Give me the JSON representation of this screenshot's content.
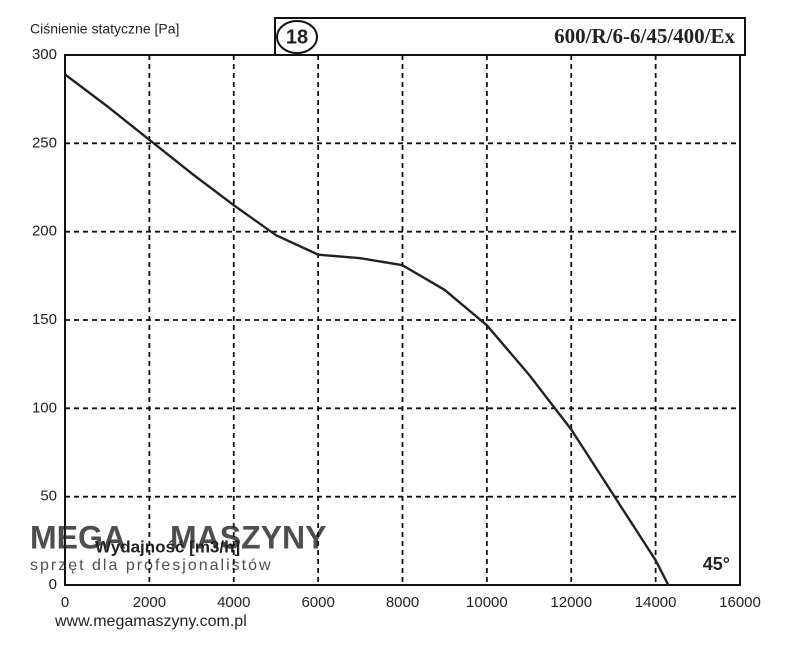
{
  "chart_data": {
    "type": "line",
    "title": "600/R/6-6/45/400/Ex",
    "badge": "18",
    "y_label": "Ciśnienie statyczne [Pa]",
    "x_label": "Wydajność [m3/h]",
    "annotation": "45°",
    "x": [
      0,
      1000,
      2000,
      3000,
      4000,
      5000,
      6000,
      7000,
      8000,
      9000,
      10000,
      11000,
      12000,
      13000,
      14000,
      14300
    ],
    "series": [
      {
        "name": "600/R/6-6/45/400/Ex",
        "color": "#222222",
        "values": [
          289,
          271,
          252,
          233,
          215,
          198,
          187,
          185,
          181,
          167,
          147,
          119,
          88,
          51,
          14,
          0
        ]
      }
    ],
    "xlim": [
      0,
      16000
    ],
    "ylim": [
      0,
      300
    ],
    "xticks": [
      0,
      2000,
      4000,
      6000,
      8000,
      10000,
      12000,
      14000,
      16000
    ],
    "yticks": [
      0,
      50,
      100,
      150,
      200,
      250,
      300
    ],
    "grid": true
  },
  "watermark": {
    "brand_1": "MEGA",
    "brand_2": "MASZYNY",
    "slogan": "sprzęt dla profesjonalistów",
    "url": "www.megamaszyny.com.pl"
  }
}
